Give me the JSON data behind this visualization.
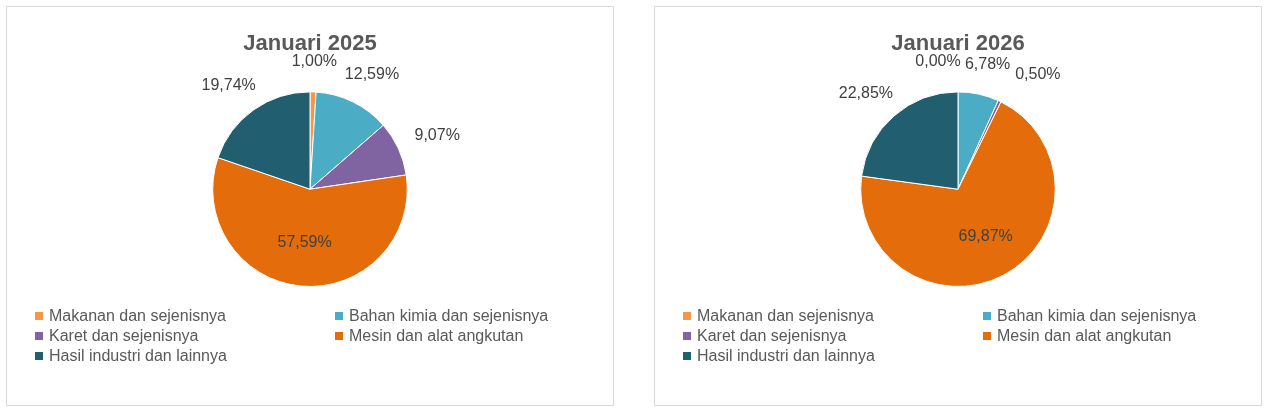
{
  "chart_data": [
    {
      "type": "pie",
      "title": "Januari 2025",
      "categories": [
        "Makanan dan sejenisnya",
        "Bahan kimia dan sejenisnya",
        "Karet dan sejenisnya",
        "Mesin dan alat angkutan",
        "Hasil industri dan lainnya"
      ],
      "values": [
        1.0,
        12.59,
        9.07,
        57.59,
        19.74
      ],
      "value_labels": [
        "1,00%",
        "12,59%",
        "9,07%",
        "57,59%",
        "19,74%"
      ],
      "colors": [
        "#f79646",
        "#4bacc6",
        "#8064a2",
        "#e46c0a",
        "#215f70"
      ],
      "legend": "bottom"
    },
    {
      "type": "pie",
      "title": "Januari 2026",
      "categories": [
        "Makanan dan sejenisnya",
        "Bahan kimia dan sejenisnya",
        "Karet dan sejenisnya",
        "Mesin dan alat angkutan",
        "Hasil industri dan lainnya"
      ],
      "values": [
        0.0,
        6.78,
        0.5,
        69.87,
        22.85
      ],
      "value_labels": [
        "0,00%",
        "6,78%",
        "0,50%",
        "69,87%",
        "22,85%"
      ],
      "colors": [
        "#f79646",
        "#4bacc6",
        "#8064a2",
        "#e46c0a",
        "#215f70"
      ],
      "legend": "bottom"
    }
  ]
}
